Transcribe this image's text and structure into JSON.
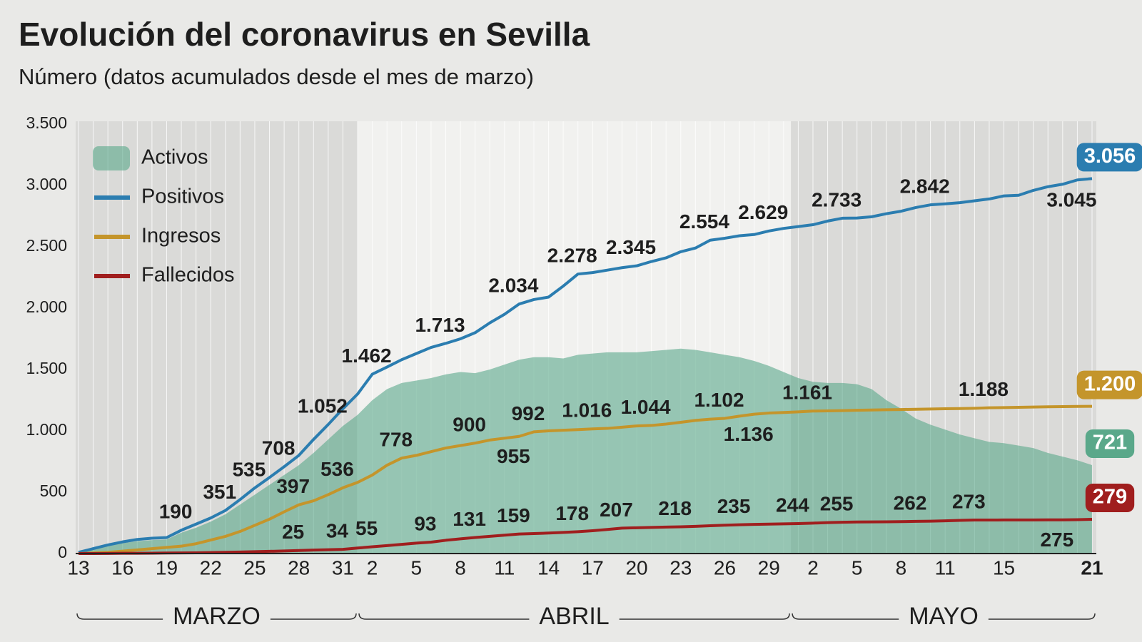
{
  "chart_data": {
    "type": "line",
    "title": "Evolución del coronavirus en Sevilla",
    "subtitle": "Número (datos acumulados desde el mes de marzo)",
    "categories": [
      "13",
      null,
      null,
      "16",
      null,
      null,
      "19",
      null,
      null,
      "22",
      null,
      null,
      "25",
      null,
      null,
      "28",
      null,
      null,
      "31",
      null,
      "2",
      null,
      null,
      "5",
      null,
      null,
      "8",
      null,
      null,
      "11",
      null,
      null,
      "14",
      null,
      null,
      "17",
      null,
      null,
      "20",
      null,
      null,
      "23",
      null,
      null,
      "26",
      null,
      null,
      "29",
      null,
      null,
      "2",
      null,
      null,
      "5",
      null,
      null,
      "8",
      null,
      null,
      "11",
      null,
      null,
      null,
      "15",
      null,
      null,
      null,
      null,
      null,
      "21"
    ],
    "months": [
      "MARZO",
      "ABRIL",
      "MAYO"
    ],
    "ylim": [
      0,
      3500
    ],
    "yticks": [
      0,
      500,
      {
        "value": 1000,
        "label": "1.000"
      },
      {
        "value": 1500,
        "label": "1.500"
      },
      {
        "value": 2000,
        "label": "2.000"
      },
      {
        "value": 2500,
        "label": "2.500"
      },
      {
        "value": 3000,
        "label": "3.000"
      },
      {
        "value": 3500,
        "label": "3.500"
      }
    ],
    "legend": "top-left",
    "series": [
      {
        "name": "Activos",
        "type": "area",
        "color": "#5aa88a",
        "values": [
          10,
          35,
          60,
          85,
          100,
          110,
          115,
          170,
          210,
          260,
          320,
          400,
          480,
          560,
          640,
          720,
          820,
          930,
          1040,
          1130,
          1250,
          1340,
          1390,
          1410,
          1430,
          1460,
          1480,
          1470,
          1500,
          1540,
          1580,
          1600,
          1600,
          1590,
          1620,
          1630,
          1640,
          1640,
          1640,
          1650,
          1660,
          1670,
          1660,
          1640,
          1620,
          1600,
          1570,
          1530,
          1480,
          1430,
          1400,
          1390,
          1390,
          1380,
          1340,
          1250,
          1180,
          1100,
          1050,
          1010,
          970,
          940,
          910,
          900,
          880,
          860,
          820,
          790,
          760,
          721
        ],
        "value_labels": [
          null,
          null,
          null,
          null,
          null,
          null,
          null,
          null,
          null,
          null,
          null,
          null,
          null,
          null,
          null,
          null,
          null,
          null,
          null,
          null,
          null,
          null,
          null,
          null,
          null,
          null,
          null,
          null,
          null,
          null,
          null,
          null,
          null,
          null,
          null,
          null,
          null,
          null,
          null,
          null,
          null,
          null,
          null,
          null,
          null,
          null,
          null,
          null,
          null,
          null,
          null,
          null,
          null,
          null,
          null,
          null,
          null,
          null,
          null,
          null,
          null,
          null,
          null,
          null,
          null,
          null,
          null,
          null,
          null,
          "721"
        ]
      },
      {
        "name": "Positivos",
        "color": "#2b7db0",
        "values": [
          10,
          40,
          70,
          95,
          115,
          125,
          130,
          190,
          240,
          290,
          351,
          440,
          535,
          620,
          708,
          800,
          930,
          1052,
          1180,
          1300,
          1462,
          1520,
          1580,
          1630,
          1680,
          1713,
          1750,
          1800,
          1880,
          1950,
          2034,
          2070,
          2090,
          2180,
          2278,
          2290,
          2310,
          2330,
          2345,
          2380,
          2410,
          2460,
          2490,
          2554,
          2570,
          2590,
          2600,
          2629,
          2650,
          2665,
          2680,
          2710,
          2733,
          2735,
          2745,
          2770,
          2790,
          2820,
          2842,
          2850,
          2860,
          2875,
          2890,
          2915,
          2920,
          2960,
          2990,
          3010,
          3045,
          3056
        ],
        "value_labels": [
          null,
          null,
          null,
          null,
          null,
          null,
          null,
          "190",
          null,
          null,
          "351",
          null,
          "535",
          null,
          "708",
          null,
          null,
          "1.052",
          null,
          null,
          "1.462",
          null,
          null,
          null,
          null,
          "1.713",
          null,
          null,
          null,
          null,
          "2.034",
          null,
          null,
          null,
          "2.278",
          null,
          null,
          null,
          "2.345",
          null,
          null,
          null,
          null,
          "2.554",
          null,
          null,
          null,
          "2.629",
          null,
          null,
          null,
          null,
          "2.733",
          null,
          null,
          null,
          null,
          null,
          "2.842",
          null,
          null,
          null,
          null,
          null,
          null,
          null,
          null,
          null,
          "3.045",
          "3.056"
        ]
      },
      {
        "name": "Ingresos",
        "color": "#c4952b",
        "values": [
          0,
          5,
          10,
          20,
          30,
          40,
          50,
          60,
          80,
          110,
          140,
          180,
          230,
          280,
          340,
          397,
          430,
          480,
          536,
          580,
          640,
          720,
          778,
          800,
          830,
          860,
          880,
          900,
          925,
          940,
          955,
          992,
          1000,
          1005,
          1010,
          1016,
          1020,
          1030,
          1040,
          1044,
          1055,
          1070,
          1085,
          1095,
          1102,
          1120,
          1136,
          1145,
          1150,
          1155,
          1161,
          1163,
          1165,
          1168,
          1170,
          1172,
          1174,
          1176,
          1178,
          1180,
          1182,
          1184,
          1188,
          1190,
          1192,
          1194,
          1196,
          1198,
          1199,
          1200
        ],
        "value_labels": [
          null,
          null,
          null,
          null,
          null,
          null,
          null,
          null,
          null,
          null,
          null,
          null,
          null,
          null,
          null,
          "397",
          null,
          null,
          "536",
          null,
          null,
          null,
          "778",
          null,
          null,
          null,
          null,
          "900",
          null,
          null,
          "955",
          "992",
          null,
          null,
          null,
          "1.016",
          null,
          null,
          null,
          "1.044",
          null,
          null,
          null,
          null,
          "1.102",
          null,
          "1.136",
          null,
          null,
          null,
          "1.161",
          null,
          null,
          null,
          null,
          null,
          null,
          null,
          null,
          null,
          null,
          null,
          "1.188",
          null,
          null,
          null,
          null,
          null,
          null,
          "1.200"
        ]
      },
      {
        "name": "Fallecidos",
        "color": "#a01e1e",
        "values": [
          0,
          0,
          1,
          2,
          2,
          3,
          4,
          5,
          6,
          8,
          10,
          12,
          15,
          18,
          21,
          25,
          28,
          31,
          34,
          45,
          55,
          65,
          75,
          85,
          93,
          108,
          120,
          131,
          140,
          150,
          159,
          163,
          167,
          172,
          178,
          186,
          196,
          207,
          210,
          213,
          216,
          218,
          222,
          227,
          231,
          235,
          238,
          240,
          242,
          244,
          248,
          252,
          255,
          257,
          258,
          259,
          260,
          262,
          264,
          267,
          270,
          273,
          273,
          274,
          274,
          274,
          275,
          275,
          276,
          279
        ],
        "value_labels": [
          null,
          null,
          null,
          null,
          null,
          null,
          null,
          null,
          null,
          null,
          null,
          null,
          null,
          null,
          null,
          "25",
          null,
          null,
          "34",
          null,
          "55",
          null,
          null,
          null,
          "93",
          null,
          null,
          "131",
          null,
          null,
          "159",
          null,
          null,
          null,
          "178",
          null,
          null,
          "207",
          null,
          null,
          null,
          "218",
          null,
          null,
          null,
          "235",
          null,
          null,
          null,
          "244",
          null,
          null,
          "255",
          null,
          null,
          null,
          null,
          "262",
          null,
          null,
          null,
          "273",
          null,
          null,
          null,
          null,
          null,
          "275",
          null,
          "279"
        ]
      }
    ]
  }
}
